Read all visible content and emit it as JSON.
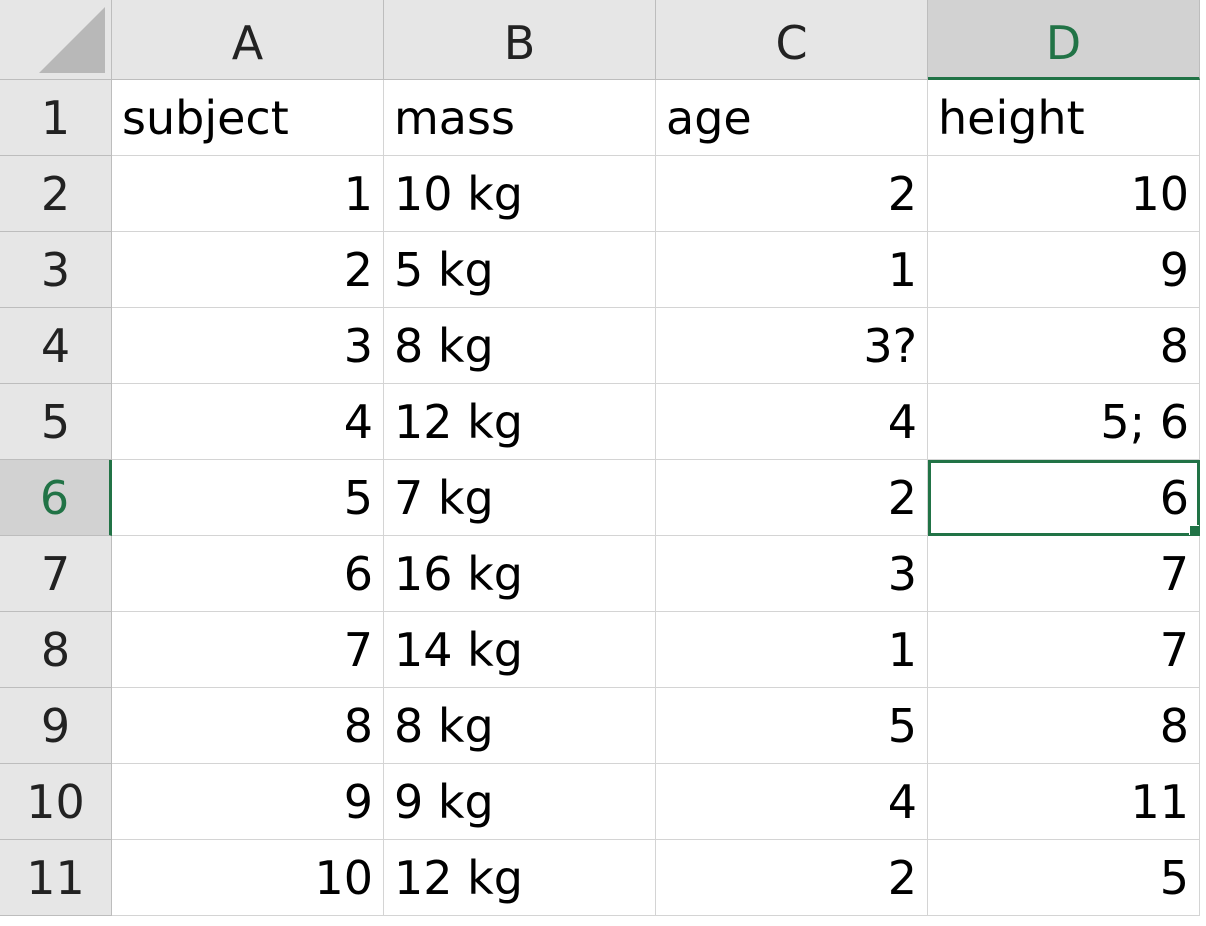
{
  "columns": [
    "A",
    "B",
    "C",
    "D"
  ],
  "rows": [
    {
      "num": "1",
      "cells": [
        "subject",
        "mass",
        "age",
        "height"
      ]
    },
    {
      "num": "2",
      "cells": [
        "1",
        "10 kg",
        "2",
        "10"
      ]
    },
    {
      "num": "3",
      "cells": [
        "2",
        "5 kg",
        "1",
        "9"
      ]
    },
    {
      "num": "4",
      "cells": [
        "3",
        "8 kg",
        "3?",
        "8"
      ]
    },
    {
      "num": "5",
      "cells": [
        "4",
        "12 kg",
        "4",
        "5; 6"
      ]
    },
    {
      "num": "6",
      "cells": [
        "5",
        "7 kg",
        "2",
        "6"
      ]
    },
    {
      "num": "7",
      "cells": [
        "6",
        "16 kg",
        "3",
        "7"
      ]
    },
    {
      "num": "8",
      "cells": [
        "7",
        "14 kg",
        "1",
        "7"
      ]
    },
    {
      "num": "9",
      "cells": [
        "8",
        "8 kg",
        "5",
        "8"
      ]
    },
    {
      "num": "10",
      "cells": [
        "9",
        "9 kg",
        "4",
        "11"
      ]
    },
    {
      "num": "11",
      "cells": [
        "10",
        "12 kg",
        "2",
        "5"
      ]
    }
  ],
  "selection": {
    "row": 6,
    "col": "D"
  },
  "colors": {
    "accent": "#217346",
    "header_bg": "#e6e6e6",
    "header_active_bg": "#d2d2d2",
    "gridline": "#d4d4d4"
  }
}
